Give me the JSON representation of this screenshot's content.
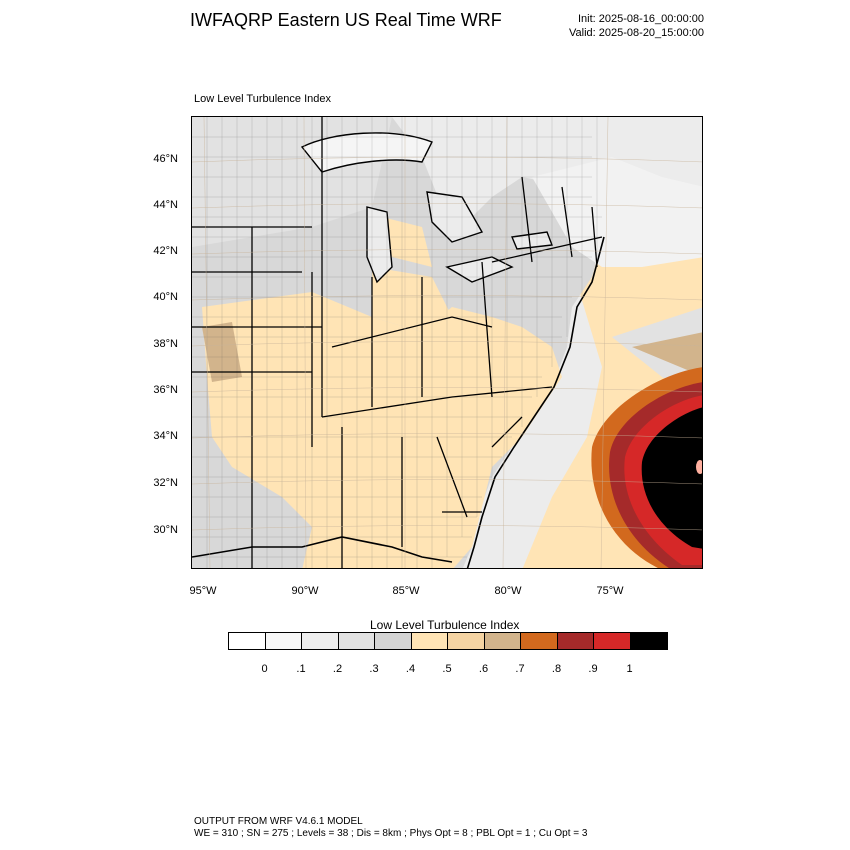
{
  "header": {
    "title": "IWFAQRP Eastern US Real Time WRF",
    "init": "Init: 2025-08-16_00:00:00",
    "valid": "Valid: 2025-08-20_15:00:00"
  },
  "map": {
    "label": "Low Level Turbulence Index",
    "region": "Eastern United States",
    "lat_labels": [
      "46°N",
      "44°N",
      "42°N",
      "40°N",
      "38°N",
      "36°N",
      "34°N",
      "32°N",
      "30°N"
    ],
    "lon_labels": [
      "95°W",
      "90°W",
      "85°W",
      "80°W",
      "75°W"
    ],
    "features": [
      "state-borders",
      "county-borders",
      "great-lakes",
      "coastline",
      "hurricane-vortex-offshore"
    ]
  },
  "colorbar": {
    "title": "Low Level Turbulence Index",
    "colors": [
      "#ffffff",
      "#f7f7f7",
      "#eeeeee",
      "#e2e2e2",
      "#d4d4d4",
      "#ffe4b5",
      "#f5d4a3",
      "#d2b48c",
      "#d2691e",
      "#a52a2a",
      "#d62828",
      "#000000"
    ],
    "ticks": [
      "0",
      ".1",
      ".2",
      ".3",
      ".4",
      ".5",
      ".6",
      ".7",
      ".8",
      ".9",
      "1"
    ]
  },
  "footer": {
    "line1": "OUTPUT FROM WRF V4.6.1 MODEL",
    "line2": "WE = 310 ; SN = 275 ; Levels = 38 ; Dis = 8km ; Phys Opt = 8 ; PBL Opt = 1 ; Cu Opt = 3"
  }
}
